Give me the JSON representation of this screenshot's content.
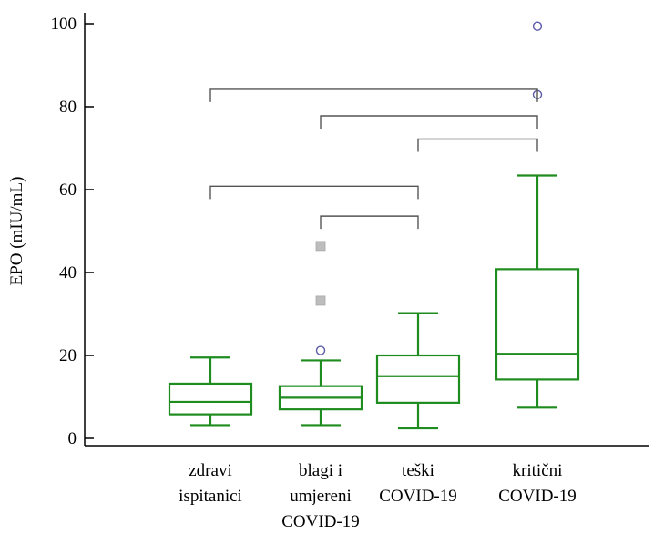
{
  "chart_data": {
    "type": "box",
    "title": "",
    "xlabel": "",
    "ylabel": "EPO (mIU/mL)",
    "ylim": [
      0,
      100
    ],
    "yticks": [
      0,
      20,
      40,
      60,
      80,
      100
    ],
    "grid": false,
    "categories": [
      {
        "lines": [
          "zdravi",
          "ispitanici"
        ]
      },
      {
        "lines": [
          "blagi i",
          "umjereni",
          "COVID-19"
        ]
      },
      {
        "lines": [
          "teški",
          "COVID-19"
        ]
      },
      {
        "lines": [
          "kritični",
          "COVID-19"
        ]
      }
    ],
    "boxes": [
      {
        "whisker_low": 3.2,
        "q1": 5.8,
        "median": 8.8,
        "q3": 13.2,
        "whisker_high": 19.5,
        "outliers": []
      },
      {
        "whisker_low": 3.2,
        "q1": 7.0,
        "median": 9.8,
        "q3": 12.6,
        "whisker_high": 18.8,
        "outliers": [
          {
            "value": 21.2,
            "marker": "circle"
          },
          {
            "value": 33.2,
            "marker": "square"
          },
          {
            "value": 46.4,
            "marker": "square"
          }
        ]
      },
      {
        "whisker_low": 2.4,
        "q1": 8.6,
        "median": 15.0,
        "q3": 20.0,
        "whisker_high": 30.2,
        "outliers": []
      },
      {
        "whisker_low": 7.4,
        "q1": 14.2,
        "median": 20.4,
        "q3": 40.8,
        "whisker_high": 63.4,
        "outliers": [
          {
            "value": 82.9,
            "marker": "circle"
          },
          {
            "value": 99.4,
            "marker": "circle"
          }
        ]
      }
    ],
    "significance_brackets": [
      {
        "from": 0,
        "to": 3,
        "y": 84.2
      },
      {
        "from": 1,
        "to": 3,
        "y": 77.8
      },
      {
        "from": 2,
        "to": 3,
        "y": 72.2
      },
      {
        "from": 0,
        "to": 2,
        "y": 60.8
      },
      {
        "from": 1,
        "to": 2,
        "y": 53.6
      }
    ],
    "colors": {
      "box": "#1e8c1e",
      "bracket": "#555555",
      "axis": "#000000",
      "circle_outlier": "#5b5ba8",
      "square_outlier": "#bdbdbd"
    }
  }
}
